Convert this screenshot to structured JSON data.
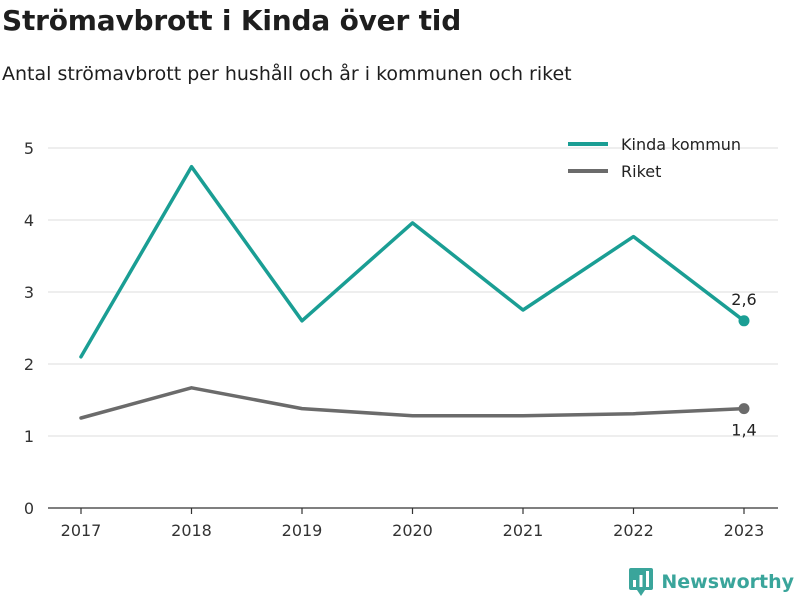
{
  "header": {
    "title": "Strömavbrott i Kinda över tid",
    "subtitle": "Antal strömavbrott per hushåll och år i kommunen och riket"
  },
  "brand": {
    "name": "Newsworthy",
    "icon": "newsworthy-logo-icon",
    "color": "#3aa59b"
  },
  "chart_data": {
    "type": "line",
    "x": [
      "2017",
      "2018",
      "2019",
      "2020",
      "2021",
      "2022",
      "2023"
    ],
    "yticks": [
      "0",
      "1",
      "2",
      "3",
      "4",
      "5"
    ],
    "ylim": [
      0,
      5
    ],
    "grid": true,
    "legend_position": "top-right",
    "series": [
      {
        "name": "Kinda kommun",
        "color": "#1a9e94",
        "values": [
          2.1,
          4.74,
          2.6,
          3.96,
          2.75,
          3.77,
          2.6
        ],
        "end_label": "2,6",
        "end_label_position": "above"
      },
      {
        "name": "Riket",
        "color": "#6b6b6b",
        "values": [
          1.25,
          1.67,
          1.38,
          1.28,
          1.28,
          1.31,
          1.38
        ],
        "end_label": "1,4",
        "end_label_position": "below"
      }
    ]
  }
}
